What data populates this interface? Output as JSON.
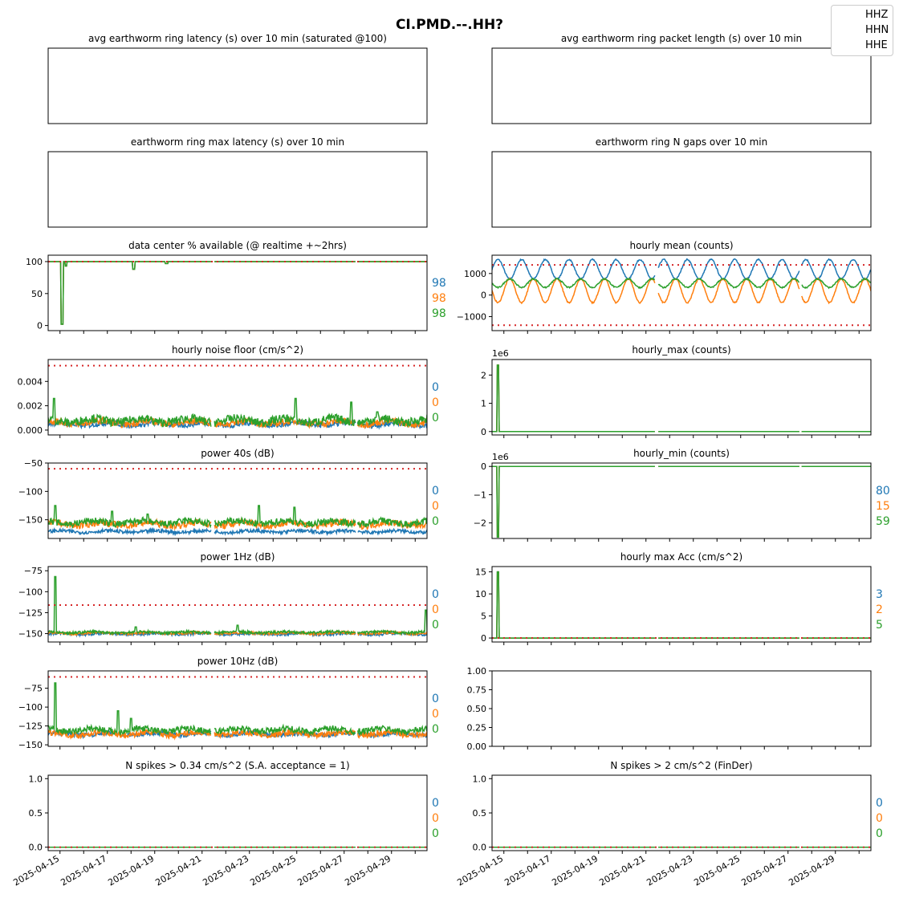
{
  "figure": {
    "title": "CI.PMD.--.HH?",
    "legend": [
      "HHZ",
      "HHN",
      "HHE"
    ],
    "colors": {
      "HHZ": "#1f77b4",
      "HHN": "#ff7f0e",
      "HHE": "#2ca02c",
      "threshold": "#d62728"
    }
  },
  "chart_data": [
    {
      "id": "p0",
      "type": "line",
      "title": "avg earthworm ring latency (s)   over 10 min (saturated @100)",
      "empty": true
    },
    {
      "id": "p1",
      "type": "line",
      "title": "avg earthworm ring packet length (s)   over 10 min",
      "empty": true
    },
    {
      "id": "p2",
      "type": "line",
      "title": "earthworm ring max latency (s)   over 10 min",
      "empty": true
    },
    {
      "id": "p3",
      "type": "line",
      "title": "earthworm ring N gaps   over 10 min",
      "empty": true
    },
    {
      "id": "p4",
      "type": "line",
      "title": "data center % available (@ realtime +~2hrs)",
      "ylim": [
        -8,
        110
      ],
      "yticks": [
        0,
        50,
        100
      ],
      "yticklabels": [
        "0",
        "50",
        "100"
      ],
      "thresholds": [
        100
      ],
      "side_values": [
        "98",
        "98",
        "98"
      ],
      "pattern": "availability",
      "dips": [
        [
          0.6,
          2
        ],
        [
          0.75,
          93
        ],
        [
          3.6,
          88
        ],
        [
          5.0,
          97
        ]
      ]
    },
    {
      "id": "p5",
      "type": "line",
      "title": "hourly mean (counts)",
      "ylim": [
        -1650,
        1850
      ],
      "yticks": [
        -1000,
        0,
        1000
      ],
      "yticklabels": [
        "−1000",
        "0",
        "1000"
      ],
      "thresholds": [
        1400,
        -1400
      ],
      "side_values": [],
      "pattern": "diurnal",
      "series_levels": [
        [
          1200,
          450
        ],
        [
          200,
          550
        ],
        [
          550,
          200
        ]
      ]
    },
    {
      "id": "p6",
      "type": "line",
      "title": "hourly noise floor (cm/s^2)",
      "ylim": [
        -0.0004,
        0.0058
      ],
      "yticks": [
        0,
        0.002,
        0.004
      ],
      "yticklabels": [
        "0.000",
        "0.002",
        "0.004"
      ],
      "thresholds": [
        0.0053
      ],
      "side_values": [
        "0",
        "0",
        "0"
      ],
      "pattern": "noise",
      "series_levels": [
        [
          0.0004,
          0.00022
        ],
        [
          0.0005,
          0.00028
        ],
        [
          0.00065,
          0.00035
        ]
      ],
      "spikes": [
        [
          0.25,
          0.0026
        ],
        [
          10.45,
          0.0026
        ],
        [
          12.8,
          0.0023
        ],
        [
          13.9,
          0.0015
        ]
      ]
    },
    {
      "id": "p7",
      "type": "line",
      "title": "hourly_max (counts)",
      "offset_label": "1e6",
      "ylim": [
        -0.12,
        2.55
      ],
      "yticks": [
        0,
        1,
        2
      ],
      "yticklabels": [
        "0",
        "1",
        "2"
      ],
      "thresholds": [],
      "side_values": [],
      "pattern": "flat",
      "series_levels": [
        [
          0,
          0
        ],
        [
          0,
          0
        ],
        [
          0,
          0
        ]
      ],
      "spikes": [
        [
          0.25,
          2.35
        ]
      ]
    },
    {
      "id": "p8",
      "type": "line",
      "title": "power 40s (dB)",
      "ylim": [
        -183,
        -50
      ],
      "yticks": [
        -150,
        -100,
        -50
      ],
      "yticklabels": [
        "−150",
        "−100",
        "−50"
      ],
      "thresholds": [
        -60
      ],
      "side_values": [
        "0",
        "0",
        "0"
      ],
      "pattern": "noise",
      "series_levels": [
        [
          -172,
          3
        ],
        [
          -160,
          6
        ],
        [
          -157,
          6
        ]
      ],
      "spikes": [
        [
          0.3,
          -125
        ],
        [
          2.7,
          -135
        ],
        [
          4.2,
          -140
        ],
        [
          8.9,
          -125
        ],
        [
          10.4,
          -128
        ]
      ]
    },
    {
      "id": "p9",
      "type": "line",
      "title": "hourly_min (counts)",
      "offset_label": "1e6",
      "ylim": [
        -2.55,
        0.12
      ],
      "yticks": [
        -2,
        -1,
        0
      ],
      "yticklabels": [
        "−2",
        "−1",
        "0"
      ],
      "thresholds": [],
      "side_values": [
        "80",
        "15",
        "59"
      ],
      "pattern": "flat",
      "series_levels": [
        [
          0,
          0
        ],
        [
          0,
          0
        ],
        [
          0,
          0
        ]
      ],
      "spikes": [
        [
          0.25,
          -2.5
        ]
      ]
    },
    {
      "id": "p10",
      "type": "line",
      "title": "power 1Hz (dB)",
      "ylim": [
        -160,
        -70
      ],
      "yticks": [
        -150,
        -125,
        -100,
        -75
      ],
      "yticklabels": [
        "−150",
        "−125",
        "−100",
        "−75"
      ],
      "thresholds": [
        -116
      ],
      "side_values": [
        "0",
        "0",
        "0"
      ],
      "pattern": "noise",
      "series_levels": [
        [
          -151,
          1.5
        ],
        [
          -150,
          1.5
        ],
        [
          -149,
          1.5
        ]
      ],
      "spikes": [
        [
          0.3,
          -82
        ],
        [
          3.7,
          -142
        ],
        [
          8.0,
          -140
        ],
        [
          15.95,
          -122
        ]
      ]
    },
    {
      "id": "p11",
      "type": "line",
      "title": "hourly max Acc (cm/s^2)",
      "ylim": [
        -0.9,
        16.2
      ],
      "yticks": [
        0,
        5,
        10,
        15
      ],
      "yticklabels": [
        "0",
        "5",
        "10",
        "15"
      ],
      "thresholds": [
        0
      ],
      "side_values": [
        "3",
        "2",
        "5"
      ],
      "pattern": "flat",
      "series_levels": [
        [
          0,
          0
        ],
        [
          0,
          0
        ],
        [
          0,
          0
        ]
      ],
      "spikes": [
        [
          0.25,
          15
        ]
      ]
    },
    {
      "id": "p12",
      "type": "line",
      "title": "power 10Hz (dB)",
      "ylim": [
        -152,
        -52
      ],
      "yticks": [
        -150,
        -125,
        -100,
        -75
      ],
      "yticklabels": [
        "−150",
        "−125",
        "−100",
        "−75"
      ],
      "thresholds": [
        -60
      ],
      "side_values": [
        "0",
        "0",
        "0"
      ],
      "pattern": "noise",
      "series_levels": [
        [
          -137,
          3
        ],
        [
          -137,
          4
        ],
        [
          -132,
          4
        ]
      ],
      "spikes": [
        [
          0.3,
          -68
        ],
        [
          2.95,
          -105
        ],
        [
          3.5,
          -115
        ]
      ]
    },
    {
      "id": "p13",
      "type": "line",
      "title": "",
      "ylim": [
        0,
        1
      ],
      "yticks": [
        0,
        0.25,
        0.5,
        0.75,
        1
      ],
      "yticklabels": [
        "0.00",
        "0.25",
        "0.50",
        "0.75",
        "1.00"
      ],
      "thresholds": [],
      "side_values": [],
      "pattern": "none"
    },
    {
      "id": "p14",
      "type": "line",
      "title": "N spikes > 0.34 cm/s^2 (S.A. acceptance = 1)",
      "ylim": [
        -0.05,
        1.05
      ],
      "yticks": [
        0,
        0.5,
        1
      ],
      "yticklabels": [
        "0.0",
        "0.5",
        "1.0"
      ],
      "thresholds": [
        0
      ],
      "side_values": [
        "0",
        "0",
        "0"
      ],
      "pattern": "flat",
      "series_levels": [
        [
          0,
          0
        ],
        [
          0,
          0
        ],
        [
          0,
          0
        ]
      ]
    },
    {
      "id": "p15",
      "type": "line",
      "title": "N spikes > 2 cm/s^2 (FinDer)",
      "ylim": [
        -0.05,
        1.05
      ],
      "yticks": [
        0,
        0.5,
        1
      ],
      "yticklabels": [
        "0.0",
        "0.5",
        "1.0"
      ],
      "thresholds": [
        0
      ],
      "side_values": [
        "0",
        "0",
        "0"
      ],
      "pattern": "flat",
      "series_levels": [
        [
          0,
          0
        ],
        [
          0,
          0
        ],
        [
          0,
          0
        ]
      ]
    }
  ],
  "xaxis": {
    "start": "2025-04-14T12:00",
    "end": "2025-04-30T12:00",
    "gaps": [
      [
        6.9,
        7.0
      ],
      [
        13.0,
        13.05
      ]
    ],
    "ticks": [
      {
        "date": "2025-04-15",
        "label": "2025-04-15"
      },
      {
        "date": "2025-04-16",
        "label": ""
      },
      {
        "date": "2025-04-17",
        "label": "2025-04-17"
      },
      {
        "date": "2025-04-18",
        "label": ""
      },
      {
        "date": "2025-04-19",
        "label": "2025-04-19"
      },
      {
        "date": "2025-04-20",
        "label": ""
      },
      {
        "date": "2025-04-21",
        "label": "2025-04-21"
      },
      {
        "date": "2025-04-22",
        "label": ""
      },
      {
        "date": "2025-04-23",
        "label": "2025-04-23"
      },
      {
        "date": "2025-04-24",
        "label": ""
      },
      {
        "date": "2025-04-25",
        "label": "2025-04-25"
      },
      {
        "date": "2025-04-26",
        "label": ""
      },
      {
        "date": "2025-04-27",
        "label": "2025-04-27"
      },
      {
        "date": "2025-04-28",
        "label": ""
      },
      {
        "date": "2025-04-29",
        "label": "2025-04-29"
      },
      {
        "date": "2025-04-30",
        "label": ""
      }
    ]
  }
}
